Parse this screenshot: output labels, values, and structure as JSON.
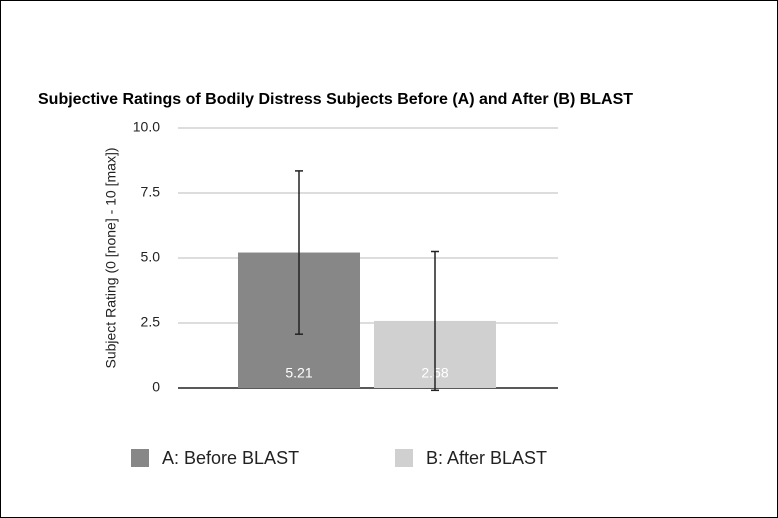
{
  "chart_data": {
    "type": "bar",
    "title": "Subjective Ratings of Bodily Distress Subjects Before (A) and After (B) BLAST",
    "y_label": "Subject Rating (0 [none] - 10 [max])",
    "series": [
      {
        "name": "A: Before BLAST",
        "color": "#878787",
        "values": [
          5.21
        ],
        "errors": [
          3.14
        ]
      },
      {
        "name": "B: After BLAST",
        "color": "#cfd0cf",
        "values": [
          2.58
        ],
        "errors": [
          2.67
        ]
      }
    ],
    "ylim": [
      0,
      10
    ],
    "yticks": [
      0,
      2.5,
      {
        "value": 5,
        "label": "5.0"
      },
      7.5,
      {
        "value": 10,
        "label": "10.0"
      }
    ],
    "grid": true
  }
}
